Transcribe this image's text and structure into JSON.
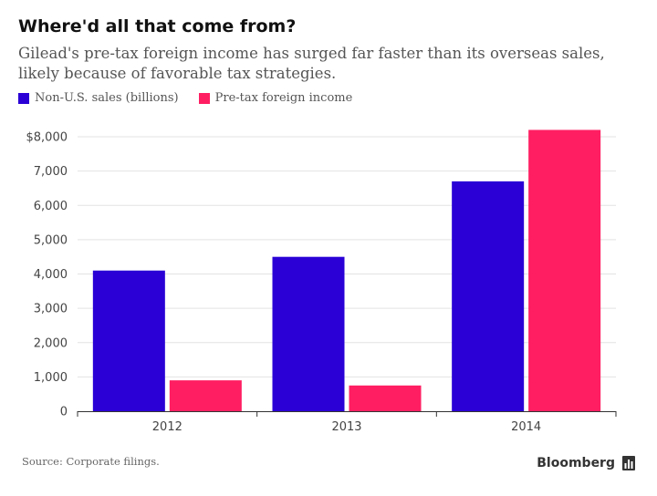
{
  "header": {
    "title": "Where'd all that come from?",
    "subtitle": "Gilead's pre-tax foreign income has surged far faster than its overseas sales, likely because of favorable tax strategies."
  },
  "legend": {
    "items": [
      {
        "label": "Non-U.S. sales (billions)",
        "color": "#2a00d6"
      },
      {
        "label": "Pre-tax foreign income",
        "color": "#ff1e62"
      }
    ]
  },
  "footer": {
    "source": "Source: Corporate filings.",
    "brand": "Bloomberg"
  },
  "chart_data": {
    "type": "bar",
    "title": "Where'd all that come from?",
    "categories": [
      "2012",
      "2013",
      "2014"
    ],
    "series": [
      {
        "name": "Non-U.S. sales (billions)",
        "color": "#2a00d6",
        "values": [
          4100,
          4500,
          6700
        ]
      },
      {
        "name": "Pre-tax foreign income",
        "color": "#ff1e62",
        "values": [
          900,
          750,
          8200
        ]
      }
    ],
    "ylim": [
      0,
      8000
    ],
    "yticks": [
      0,
      1000,
      2000,
      3000,
      4000,
      5000,
      6000,
      7000,
      8000
    ],
    "ytick_labels": [
      "0",
      "1,000",
      "2,000",
      "3,000",
      "4,000",
      "5,000",
      "6,000",
      "7,000",
      "$8,000"
    ],
    "grid": true,
    "xlabel": "",
    "ylabel": ""
  }
}
